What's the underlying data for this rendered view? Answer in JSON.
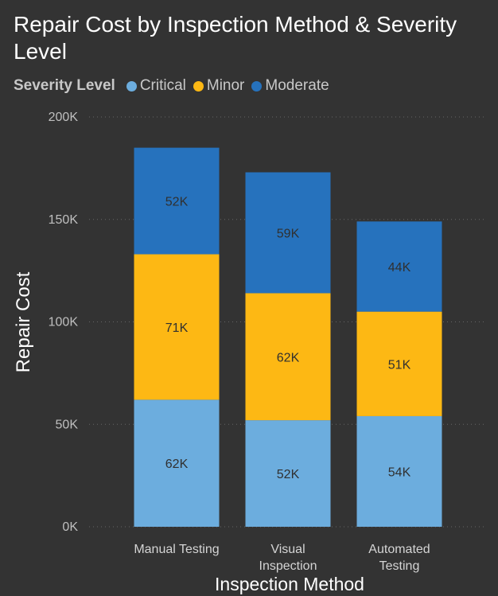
{
  "chart_data": {
    "type": "bar",
    "stacked": true,
    "title": "Repair Cost by Inspection Method & Severity Level",
    "xlabel": "Inspection Method",
    "ylabel": "Repair Cost",
    "legend_title": "Severity Level",
    "legend_position": "top-left",
    "grid": true,
    "ylim": [
      0,
      200000
    ],
    "yticks": [
      0,
      50000,
      100000,
      150000,
      200000
    ],
    "ytick_labels": [
      "0K",
      "50K",
      "100K",
      "150K",
      "200K"
    ],
    "categories": [
      "Manual Testing",
      "Visual Inspection",
      "Automated Testing"
    ],
    "category_lines": [
      [
        "Manual Testing"
      ],
      [
        "Visual",
        "Inspection"
      ],
      [
        "Automated",
        "Testing"
      ]
    ],
    "series": [
      {
        "name": "Critical",
        "color": "#6cadde",
        "values": [
          62000,
          52000,
          54000
        ],
        "labels": [
          "62K",
          "52K",
          "54K"
        ]
      },
      {
        "name": "Minor",
        "color": "#fdb814",
        "values": [
          71000,
          62000,
          51000
        ],
        "labels": [
          "71K",
          "62K",
          "51K"
        ]
      },
      {
        "name": "Moderate",
        "color": "#2672bd",
        "values": [
          52000,
          59000,
          44000
        ],
        "labels": [
          "52K",
          "59K",
          "44K"
        ]
      }
    ]
  }
}
